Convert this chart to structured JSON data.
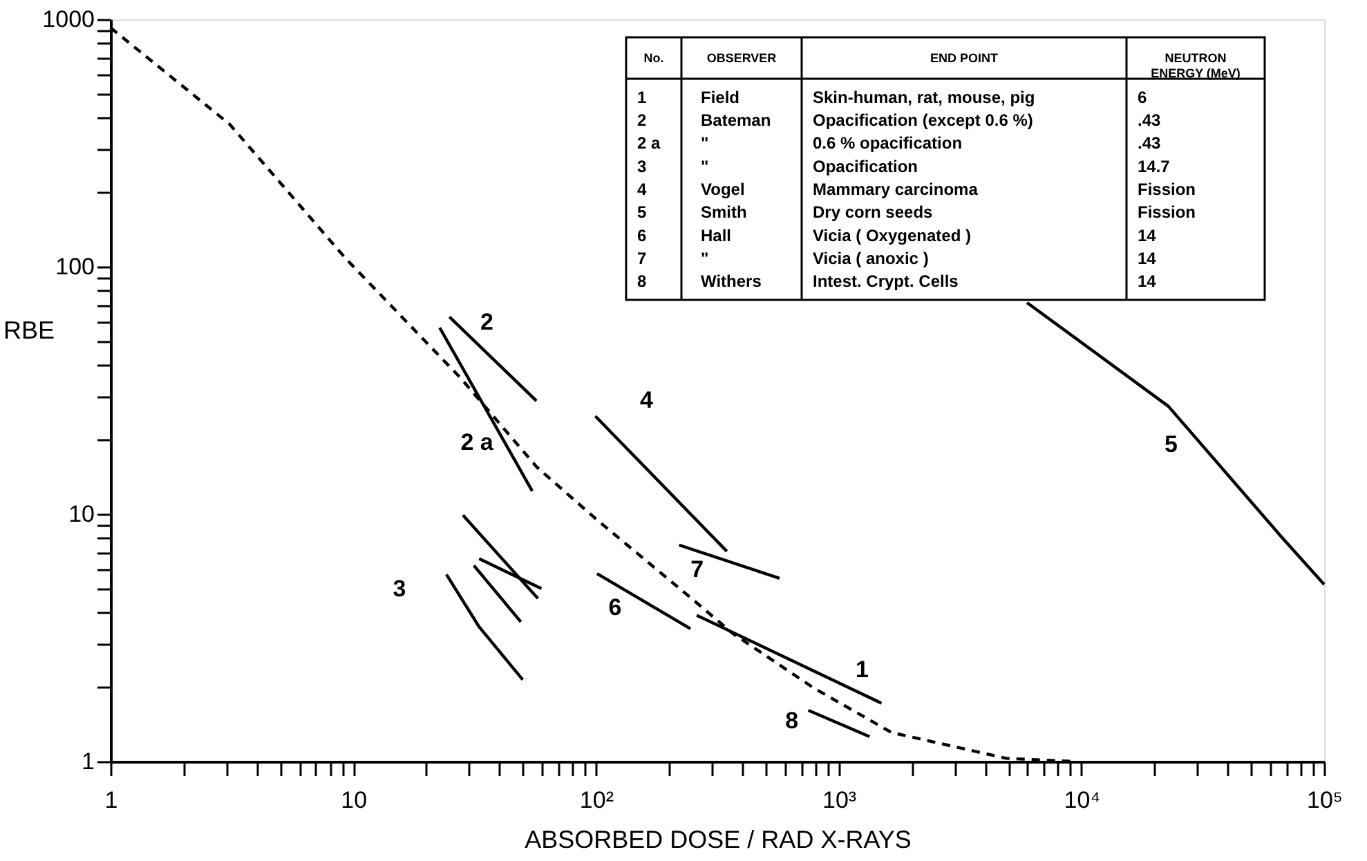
{
  "chart_data": {
    "type": "line",
    "xlabel": "ABSORBED DOSE / RAD    X-RAYS",
    "ylabel": "RBE",
    "log": "xy",
    "grid": false,
    "marker": "none",
    "xlim": [
      1,
      100000
    ],
    "ylim": [
      1,
      1000
    ],
    "xticks": [
      {
        "value": 1,
        "label": "1"
      },
      {
        "value": 2,
        "label": null
      },
      {
        "value": 3,
        "label": null
      },
      {
        "value": 4,
        "label": null
      },
      {
        "value": 5,
        "label": null
      },
      {
        "value": 6,
        "label": null
      },
      {
        "value": 7,
        "label": null
      },
      {
        "value": 8,
        "label": null
      },
      {
        "value": 9,
        "label": null
      },
      {
        "value": 10,
        "label": "10"
      },
      {
        "value": 20,
        "label": null
      },
      {
        "value": 30,
        "label": null
      },
      {
        "value": 40,
        "label": null
      },
      {
        "value": 50,
        "label": null
      },
      {
        "value": 60,
        "label": null
      },
      {
        "value": 70,
        "label": null
      },
      {
        "value": 80,
        "label": null
      },
      {
        "value": 90,
        "label": null
      },
      {
        "value": 100,
        "label": "10²"
      },
      {
        "value": 200,
        "label": null
      },
      {
        "value": 300,
        "label": null
      },
      {
        "value": 400,
        "label": null
      },
      {
        "value": 500,
        "label": null
      },
      {
        "value": 600,
        "label": null
      },
      {
        "value": 700,
        "label": null
      },
      {
        "value": 800,
        "label": null
      },
      {
        "value": 900,
        "label": null
      },
      {
        "value": 1000,
        "label": "10³"
      },
      {
        "value": 2000,
        "label": null
      },
      {
        "value": 3000,
        "label": null
      },
      {
        "value": 4000,
        "label": null
      },
      {
        "value": 5000,
        "label": null
      },
      {
        "value": 6000,
        "label": null
      },
      {
        "value": 7000,
        "label": null
      },
      {
        "value": 8000,
        "label": null
      },
      {
        "value": 9000,
        "label": null
      },
      {
        "value": 10000,
        "label": "10⁴"
      },
      {
        "value": 20000,
        "label": null
      },
      {
        "value": 30000,
        "label": null
      },
      {
        "value": 40000,
        "label": null
      },
      {
        "value": 50000,
        "label": null
      },
      {
        "value": 60000,
        "label": null
      },
      {
        "value": 70000,
        "label": null
      },
      {
        "value": 80000,
        "label": null
      },
      {
        "value": 90000,
        "label": null
      },
      {
        "value": 100000,
        "label": "10⁵"
      }
    ],
    "yticks": [
      {
        "value": 1,
        "label": "1"
      },
      {
        "value": 2,
        "label": null
      },
      {
        "value": 3,
        "label": null
      },
      {
        "value": 4,
        "label": null
      },
      {
        "value": 5,
        "label": null
      },
      {
        "value": 6,
        "label": null
      },
      {
        "value": 7,
        "label": null
      },
      {
        "value": 8,
        "label": null
      },
      {
        "value": 9,
        "label": null
      },
      {
        "value": 10,
        "label": "10"
      },
      {
        "value": 20,
        "label": null
      },
      {
        "value": 30,
        "label": null
      },
      {
        "value": 40,
        "label": null
      },
      {
        "value": 50,
        "label": null
      },
      {
        "value": 60,
        "label": null
      },
      {
        "value": 70,
        "label": null
      },
      {
        "value": 80,
        "label": null
      },
      {
        "value": 90,
        "label": null
      },
      {
        "value": 100,
        "label": "100"
      },
      {
        "value": 200,
        "label": null
      },
      {
        "value": 300,
        "label": null
      },
      {
        "value": 400,
        "label": null
      },
      {
        "value": 500,
        "label": null
      },
      {
        "value": 600,
        "label": null
      },
      {
        "value": 700,
        "label": null
      },
      {
        "value": 800,
        "label": null
      },
      {
        "value": 900,
        "label": null
      },
      {
        "value": 1000,
        "label": "1000"
      }
    ],
    "series": [
      {
        "color": "#000000",
        "line_style": "dashed",
        "x": [
          1,
          3.1,
          9.3,
          27.6,
          57,
          102,
          245,
          365,
          790,
          1650,
          4900,
          9300
        ],
        "values": [
          925,
          376,
          108,
          35.6,
          15.5,
          9.4,
          4.6,
          3.3,
          1.98,
          1.31,
          1.03,
          1.0
        ]
      },
      {
        "name": "1",
        "color": "#000000",
        "line_style": "solid",
        "x": [
          260,
          1500
        ],
        "values": [
          3.9,
          1.72
        ]
      },
      {
        "name": "2",
        "color": "#000000",
        "line_style": "solid",
        "x": [
          24.9,
          56.8
        ],
        "values": [
          62.7,
          28.7
        ]
      },
      {
        "name": "2 a",
        "color": "#000000",
        "line_style": "solid",
        "x": [
          22.7,
          54.6
        ],
        "values": [
          56.7,
          12.4
        ]
      },
      {
        "color": "#000000",
        "line_style": "solid",
        "x": [
          28.3,
          57.6
        ],
        "values": [
          9.9,
          4.56
        ]
      },
      {
        "color": "#000000",
        "line_style": "solid",
        "x": [
          33,
          59.6
        ],
        "values": [
          6.6,
          5.0
        ]
      },
      {
        "color": "#000000",
        "line_style": "solid",
        "x": [
          31.4,
          49
        ],
        "values": [
          6.2,
          3.67
        ]
      },
      {
        "name": "3",
        "color": "#000000",
        "line_style": "solid",
        "x": [
          24.2,
          33,
          49.9
        ],
        "values": [
          5.7,
          3.5,
          2.14
        ]
      },
      {
        "name": "4",
        "color": "#000000",
        "line_style": "solid",
        "x": [
          99.4,
          346
        ],
        "values": [
          24.9,
          7.07
        ]
      },
      {
        "name": "5",
        "color": "#000000",
        "line_style": "solid",
        "x": [
          5970,
          22800,
          67000,
          100000
        ],
        "values": [
          71.6,
          27.3,
          8.05,
          5.2
        ]
      },
      {
        "name": "6",
        "color": "#000000",
        "line_style": "solid",
        "x": [
          101,
          245
        ],
        "values": [
          5.75,
          3.44
        ]
      },
      {
        "name": "7",
        "color": "#000000",
        "line_style": "solid",
        "x": [
          220,
          570
        ],
        "values": [
          7.5,
          5.5
        ]
      },
      {
        "name": "8",
        "color": "#000000",
        "line_style": "solid",
        "x": [
          750,
          1340
        ],
        "values": [
          1.61,
          1.26
        ]
      }
    ],
    "annotations": [
      "No.",
      "OBSERVER",
      "END POINT",
      "NEUTRON\nENERGY (MeV)",
      "1",
      "Field",
      "Skin-human, rat, mouse, pig",
      "6",
      "2",
      "Bateman",
      "Opacification (except 0.6 %)",
      ".43",
      "2 a",
      "\"",
      "0.6 % opacification",
      ".43",
      "3",
      "\"",
      "Opacification",
      "14.7",
      "4",
      "Vogel",
      "Mammary carcinoma",
      "Fission",
      "5",
      "Smith",
      "Dry corn seeds",
      "Fission",
      "6",
      "Hall",
      "Vicia ( Oxygenated )",
      "14",
      "7",
      "\"",
      "Vicia ( anoxic )",
      "14",
      "8",
      "Withers",
      "Intest. Crypt. Cells",
      "14"
    ]
  }
}
